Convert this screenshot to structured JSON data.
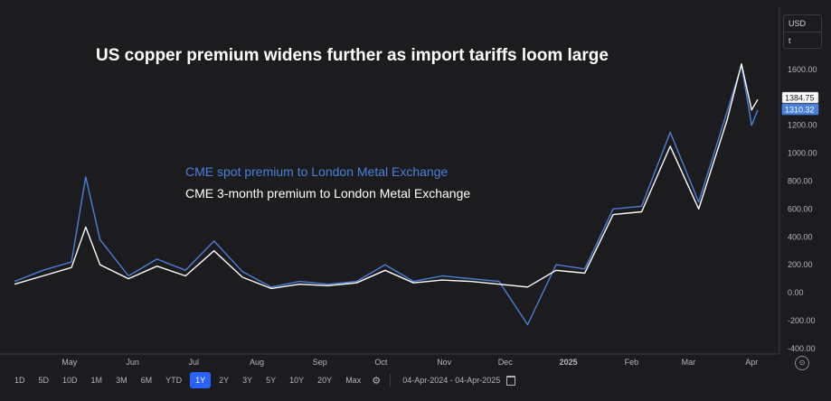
{
  "chart_data": {
    "type": "line",
    "title": "US copper premium widens further as import tariffs loom large",
    "y_axis_ticks": [
      "1600.00",
      "1400.00",
      "1200.00",
      "1000.00",
      "800.00",
      "600.00",
      "400.00",
      "200.00",
      "0.00",
      "-200.00",
      "-400.00"
    ],
    "x_axis_labels": [
      "May",
      "Jun",
      "Jul",
      "Aug",
      "Sep",
      "Oct",
      "Nov",
      "Dec",
      "2025",
      "Feb",
      "Mar",
      "Apr"
    ],
    "ylim": [
      -400,
      1600
    ],
    "x": [
      "2024-04-04",
      "2024-04-18",
      "2024-05-02",
      "2024-05-09",
      "2024-05-16",
      "2024-05-30",
      "2024-06-13",
      "2024-06-27",
      "2024-07-11",
      "2024-07-25",
      "2024-08-08",
      "2024-08-22",
      "2024-09-05",
      "2024-09-19",
      "2024-10-03",
      "2024-10-17",
      "2024-10-31",
      "2024-11-14",
      "2024-11-28",
      "2024-12-12",
      "2024-12-26",
      "2025-01-09",
      "2025-01-23",
      "2025-02-06",
      "2025-02-20",
      "2025-03-06",
      "2025-03-20",
      "2025-03-27",
      "2025-04-01",
      "2025-04-04"
    ],
    "series": [
      {
        "name": "CME spot premium to London Metal Exchange",
        "color": "#4a7fdb",
        "values": [
          80,
          160,
          220,
          830,
          380,
          120,
          240,
          160,
          370,
          150,
          40,
          80,
          60,
          80,
          200,
          80,
          120,
          100,
          80,
          -230,
          200,
          170,
          600,
          620,
          1150,
          650,
          1300,
          1630,
          1200,
          1310.32
        ]
      },
      {
        "name": "CME 3-month premium to London Metal Exchange",
        "color": "#ffffff",
        "values": [
          60,
          120,
          180,
          470,
          200,
          100,
          190,
          120,
          300,
          110,
          30,
          60,
          50,
          70,
          160,
          70,
          90,
          80,
          60,
          40,
          160,
          140,
          560,
          580,
          1050,
          600,
          1240,
          1640,
          1310,
          1384.75
        ]
      }
    ],
    "last_values": [
      "1384.75",
      "1310.32"
    ],
    "currency": "USD",
    "unit_option": "t",
    "legend_placement": "center-left",
    "grid": false
  },
  "toolbar": {
    "timeframes": [
      "1D",
      "5D",
      "10D",
      "1M",
      "3M",
      "6M",
      "YTD",
      "1Y",
      "2Y",
      "3Y",
      "5Y",
      "10Y",
      "20Y",
      "Max"
    ],
    "active_timeframe": "1Y",
    "date_range": "04-Apr-2024 - 04-Apr-2025"
  },
  "colors": {
    "background": "#1c1c1f",
    "accent": "#2962ff",
    "text": "#d1d4dc"
  }
}
